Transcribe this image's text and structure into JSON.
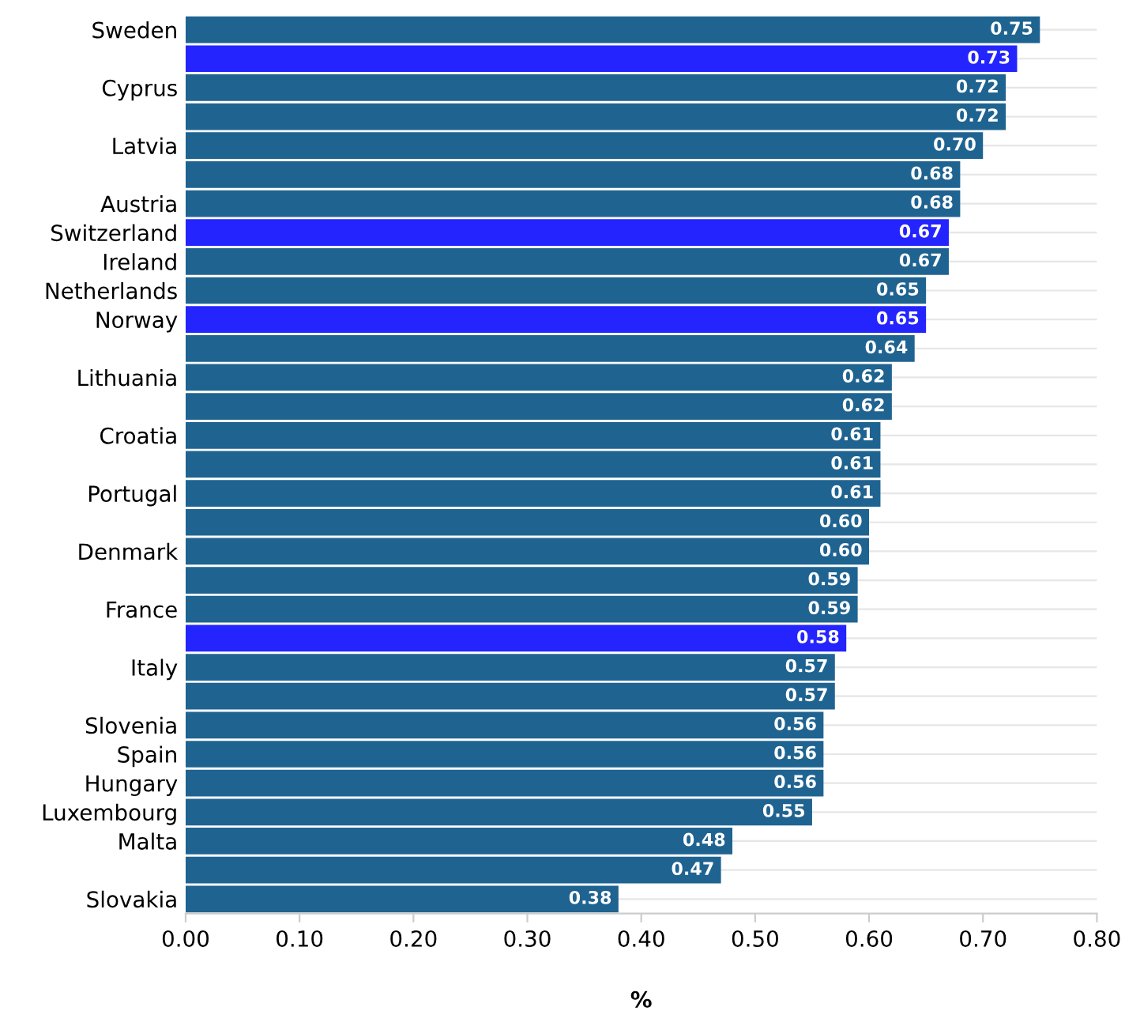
{
  "chart_data": {
    "type": "bar",
    "orientation": "horizontal",
    "xlabel": "%",
    "categories": [
      "Sweden",
      null,
      "Cyprus",
      null,
      "Latvia",
      null,
      "Austria",
      "Switzerland",
      "Ireland",
      "Netherlands",
      "Norway",
      null,
      "Lithuania",
      null,
      "Croatia",
      null,
      "Portugal",
      null,
      "Denmark",
      null,
      "France",
      null,
      "Italy",
      null,
      "Slovenia",
      "Spain",
      "Hungary",
      "Luxembourg",
      "Malta",
      null,
      "Slovakia"
    ],
    "values": [
      0.75,
      0.73,
      0.72,
      0.72,
      0.7,
      0.68,
      0.68,
      0.67,
      0.67,
      0.65,
      0.65,
      0.64,
      0.62,
      0.62,
      0.61,
      0.61,
      0.61,
      0.6,
      0.6,
      0.59,
      0.59,
      0.58,
      0.57,
      0.57,
      0.56,
      0.56,
      0.56,
      0.55,
      0.48,
      0.47,
      0.38
    ],
    "value_labels": [
      "0.75",
      "0.73",
      "0.72",
      "0.72",
      "0.70",
      "0.68",
      "0.68",
      "0.67",
      "0.67",
      "0.65",
      "0.65",
      "0.64",
      "0.62",
      "0.62",
      "0.61",
      "0.61",
      "0.61",
      "0.60",
      "0.60",
      "0.59",
      "0.59",
      "0.58",
      "0.57",
      "0.57",
      "0.56",
      "0.56",
      "0.56",
      "0.55",
      "0.48",
      "0.47",
      "0.38"
    ],
    "colors": [
      "#1f6391",
      "#2424ff",
      "#1f6391",
      "#1f6391",
      "#1f6391",
      "#1f6391",
      "#1f6391",
      "#2424ff",
      "#1f6391",
      "#1f6391",
      "#2424ff",
      "#1f6391",
      "#1f6391",
      "#1f6391",
      "#1f6391",
      "#1f6391",
      "#1f6391",
      "#1f6391",
      "#1f6391",
      "#1f6391",
      "#1f6391",
      "#2424ff",
      "#1f6391",
      "#1f6391",
      "#1f6391",
      "#1f6391",
      "#1f6391",
      "#1f6391",
      "#1f6391",
      "#1f6391",
      "#1f6391"
    ],
    "xlim": [
      0,
      0.8
    ],
    "xticks": [
      {
        "value": 0,
        "label": "0.00"
      },
      {
        "value": 0.1,
        "label": "0.10"
      },
      {
        "value": 0.2,
        "label": "0.20"
      },
      {
        "value": 0.3,
        "label": "0.30"
      },
      {
        "value": 0.4,
        "label": "0.40"
      },
      {
        "value": 0.5,
        "label": "0.50"
      },
      {
        "value": 0.6,
        "label": "0.60"
      },
      {
        "value": 0.7,
        "label": "0.70"
      },
      {
        "value": 0.8,
        "label": "0.80"
      }
    ],
    "grid": "y"
  }
}
